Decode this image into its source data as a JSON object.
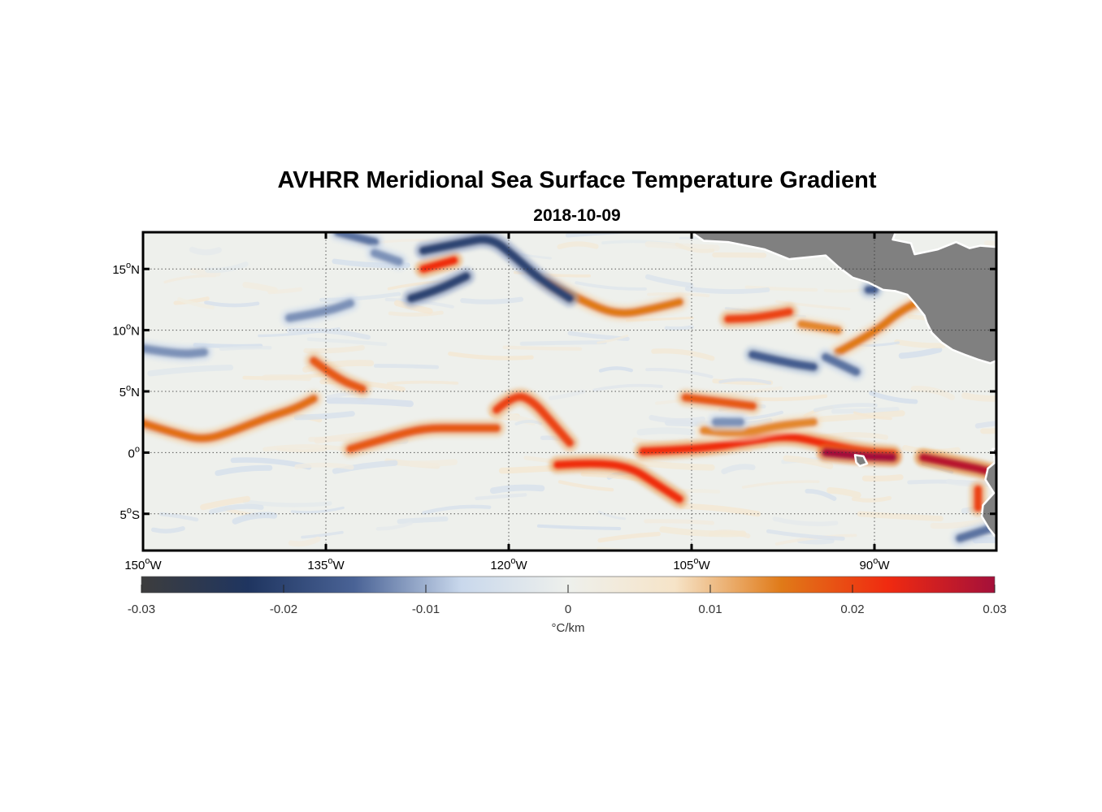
{
  "title": "AVHRR Meridional Sea Surface Temperature Gradient",
  "subtitle": "2018-10-09",
  "map": {
    "lon_range": [
      -150,
      -80
    ],
    "lat_range": [
      -8,
      18
    ],
    "grid": "dotted",
    "land_color": "#808080",
    "lon_ticks": [
      {
        "value": -150,
        "num": "150",
        "hemi": "W"
      },
      {
        "value": -135,
        "num": "135",
        "hemi": "W"
      },
      {
        "value": -120,
        "num": "120",
        "hemi": "W"
      },
      {
        "value": -105,
        "num": "105",
        "hemi": "W"
      },
      {
        "value": -90,
        "num": "90",
        "hemi": "W"
      }
    ],
    "lat_ticks": [
      {
        "value": 15,
        "num": "15",
        "hemi": "N"
      },
      {
        "value": 10,
        "num": "10",
        "hemi": "N"
      },
      {
        "value": 5,
        "num": "5",
        "hemi": "N"
      },
      {
        "value": 0,
        "num": "0",
        "hemi": ""
      },
      {
        "value": -5,
        "num": "5",
        "hemi": "S"
      }
    ],
    "degree_symbol": "o",
    "features": [
      {
        "kind": "warm",
        "strength": 0.016,
        "pts": [
          [
            -150,
            2.4
          ],
          [
            -147.5,
            1.6
          ],
          [
            -145,
            1.0
          ],
          [
            -142.5,
            1.8
          ],
          [
            -140,
            2.8
          ],
          [
            -137.5,
            3.6
          ],
          [
            -136,
            4.4
          ]
        ]
      },
      {
        "kind": "warm",
        "strength": 0.018,
        "pts": [
          [
            -133,
            0.3
          ],
          [
            -130,
            1.2
          ],
          [
            -127,
            2.0
          ],
          [
            -124,
            2.0
          ],
          [
            -121,
            2.0
          ]
        ]
      },
      {
        "kind": "warm",
        "strength": 0.02,
        "pts": [
          [
            -121,
            3.5
          ],
          [
            -119.5,
            4.8
          ],
          [
            -118,
            4.2
          ],
          [
            -116.5,
            2.5
          ],
          [
            -115,
            0.8
          ]
        ]
      },
      {
        "kind": "warm",
        "strength": 0.022,
        "pts": [
          [
            -116,
            -1.0
          ],
          [
            -113,
            -0.8
          ],
          [
            -110,
            -1.2
          ],
          [
            -108,
            -2.5
          ],
          [
            -106,
            -3.8
          ]
        ]
      },
      {
        "kind": "warm",
        "strength": 0.022,
        "pts": [
          [
            -109,
            0.1
          ],
          [
            -104,
            0.3
          ],
          [
            -100,
            1.0
          ],
          [
            -97,
            1.4
          ],
          [
            -94,
            0.7
          ],
          [
            -91,
            0.1
          ],
          [
            -88.5,
            -0.1
          ]
        ]
      },
      {
        "kind": "warm",
        "strength": 0.03,
        "pts": [
          [
            -94,
            0.0
          ],
          [
            -91,
            -0.3
          ],
          [
            -88.5,
            -0.4
          ]
        ]
      },
      {
        "kind": "warm",
        "strength": 0.028,
        "pts": [
          [
            -86,
            -0.4
          ],
          [
            -83.5,
            -0.9
          ],
          [
            -81,
            -1.4
          ],
          [
            -80,
            -1.8
          ]
        ]
      },
      {
        "kind": "warm",
        "strength": 0.02,
        "pts": [
          [
            -81.5,
            -3.0
          ],
          [
            -81.5,
            -4.5
          ]
        ]
      },
      {
        "kind": "warm",
        "strength": 0.018,
        "pts": [
          [
            -105.5,
            4.5
          ],
          [
            -103,
            4.2
          ],
          [
            -100,
            3.8
          ]
        ]
      },
      {
        "kind": "warm",
        "strength": 0.014,
        "pts": [
          [
            -104,
            1.8
          ],
          [
            -101,
            1.5
          ],
          [
            -98,
            2.2
          ],
          [
            -95,
            2.5
          ]
        ]
      },
      {
        "kind": "warm",
        "strength": 0.02,
        "pts": [
          [
            -97,
            11.5
          ],
          [
            -99.5,
            11.0
          ],
          [
            -102,
            10.9
          ]
        ]
      },
      {
        "kind": "warm",
        "strength": 0.015,
        "pts": [
          [
            -117,
            14.0
          ],
          [
            -114,
            12.4
          ],
          [
            -111,
            11.2
          ],
          [
            -108,
            11.8
          ],
          [
            -106,
            12.3
          ]
        ]
      },
      {
        "kind": "warm",
        "strength": 0.022,
        "pts": [
          [
            -127,
            15.0
          ],
          [
            -124.5,
            15.7
          ]
        ]
      },
      {
        "kind": "warm",
        "strength": 0.018,
        "pts": [
          [
            -136,
            7.5
          ],
          [
            -134,
            6.0
          ],
          [
            -132,
            5.2
          ]
        ]
      },
      {
        "kind": "warm",
        "strength": 0.015,
        "pts": [
          [
            -93,
            8.2
          ],
          [
            -90,
            9.8
          ],
          [
            -88,
            11.5
          ],
          [
            -86,
            12.5
          ]
        ]
      },
      {
        "kind": "warm",
        "strength": 0.014,
        "pts": [
          [
            -96,
            10.5
          ],
          [
            -93,
            10.0
          ]
        ]
      },
      {
        "kind": "cool",
        "strength": 0.02,
        "pts": [
          [
            -127,
            16.5
          ],
          [
            -124,
            17.1
          ],
          [
            -121.5,
            17.6
          ],
          [
            -119.5,
            16.0
          ],
          [
            -117.5,
            14.2
          ],
          [
            -115,
            12.6
          ]
        ]
      },
      {
        "kind": "cool",
        "strength": 0.02,
        "pts": [
          [
            -128,
            12.6
          ],
          [
            -126,
            13.2
          ],
          [
            -123.5,
            14.4
          ]
        ]
      },
      {
        "kind": "cool",
        "strength": 0.014,
        "pts": [
          [
            -134,
            18.0
          ],
          [
            -131,
            17.2
          ]
        ]
      },
      {
        "kind": "cool",
        "strength": 0.012,
        "pts": [
          [
            -131,
            16.3
          ],
          [
            -129,
            15.6
          ]
        ]
      },
      {
        "kind": "cool",
        "strength": 0.016,
        "pts": [
          [
            -100,
            8.0
          ],
          [
            -97,
            7.3
          ],
          [
            -95,
            7.0
          ]
        ]
      },
      {
        "kind": "cool",
        "strength": 0.014,
        "pts": [
          [
            -94,
            7.8
          ],
          [
            -91.5,
            6.6
          ]
        ]
      },
      {
        "kind": "cool",
        "strength": 0.012,
        "pts": [
          [
            -138,
            11.0
          ],
          [
            -135,
            11.5
          ],
          [
            -133,
            12.2
          ]
        ]
      },
      {
        "kind": "cool",
        "strength": 0.012,
        "pts": [
          [
            -150,
            8.5
          ],
          [
            -147,
            8.0
          ],
          [
            -145,
            8.2
          ]
        ]
      },
      {
        "kind": "cool",
        "strength": 0.016,
        "pts": [
          [
            -90.5,
            13.3
          ],
          [
            -90,
            13.3
          ]
        ]
      },
      {
        "kind": "cool",
        "strength": 0.012,
        "pts": [
          [
            -103,
            2.5
          ],
          [
            -101,
            2.5
          ]
        ]
      },
      {
        "kind": "cool",
        "strength": 0.014,
        "pts": [
          [
            -83,
            -7.0
          ],
          [
            -80.5,
            -6.2
          ]
        ]
      }
    ]
  },
  "colorbar": {
    "min": -0.03,
    "max": 0.03,
    "tick_labels": [
      "-0.03",
      "-0.02",
      "-0.01",
      "0",
      "0.01",
      "0.02",
      "0.03"
    ],
    "unit_label": "°C/km",
    "stops": [
      "#3d3d3d",
      "#1f3560",
      "#4a6396",
      "#c9d8ec",
      "#eef0ec",
      "#f6e4c8",
      "#e07a18",
      "#f02a10",
      "#a4103a"
    ]
  }
}
